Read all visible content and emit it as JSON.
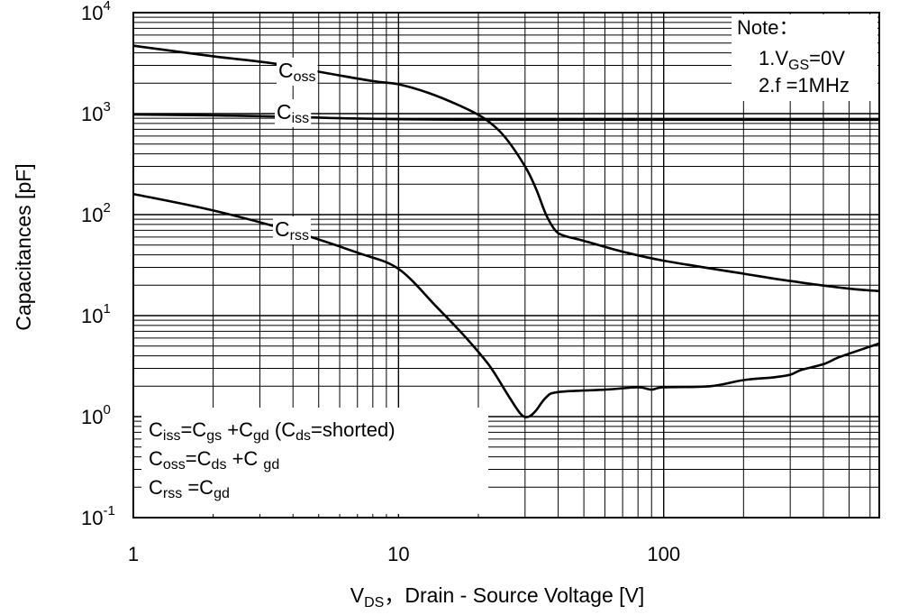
{
  "chart_data": {
    "type": "line",
    "title": "",
    "xlabel": {
      "main": "V",
      "sub": "DS",
      "rest": "，Drain - Source Voltage [V]"
    },
    "ylabel": "Capacitances [pF]",
    "x_scale": "log",
    "y_scale": "log",
    "xlim": [
      1,
      650
    ],
    "ylim": [
      0.1,
      10000
    ],
    "grid": true,
    "x_ticks": [
      {
        "value": 1,
        "label": "1"
      },
      {
        "value": 10,
        "label": "10"
      },
      {
        "value": 100,
        "label": "100"
      }
    ],
    "y_ticks": [
      {
        "value": 10000,
        "base": "10",
        "exp": "4"
      },
      {
        "value": 1000,
        "base": "10",
        "exp": "3"
      },
      {
        "value": 100,
        "base": "10",
        "exp": "2"
      },
      {
        "value": 10,
        "base": "10",
        "exp": "1"
      },
      {
        "value": 1,
        "base": "10",
        "exp": "0"
      },
      {
        "value": 0.1,
        "base": "10",
        "exp": "-1"
      }
    ],
    "series": [
      {
        "name": "Coss",
        "label": {
          "main": "C",
          "sub": "oss"
        },
        "x": [
          1,
          2,
          3.5,
          5,
          8,
          10,
          13,
          17,
          21,
          25,
          30,
          33,
          36,
          39,
          42,
          50,
          70,
          100,
          200,
          300,
          500,
          650
        ],
        "y": [
          4700,
          3700,
          3100,
          2600,
          2100,
          1950,
          1600,
          1200,
          900,
          600,
          300,
          180,
          100,
          70,
          62,
          55,
          43,
          35,
          26,
          22,
          18.5,
          17.5
        ]
      },
      {
        "name": "Ciss",
        "label": {
          "main": "C",
          "sub": "iss"
        },
        "x": [
          1,
          2,
          4,
          6,
          10,
          20,
          30,
          50,
          100,
          300,
          650
        ],
        "y": [
          980,
          960,
          930,
          900,
          880,
          870,
          870,
          870,
          870,
          870,
          870
        ]
      },
      {
        "name": "Crss",
        "label": {
          "main": "C",
          "sub": "rss"
        },
        "x": [
          1,
          2,
          4,
          7,
          10,
          14,
          18,
          22,
          26,
          29,
          31,
          33,
          36,
          40,
          60,
          80,
          90,
          100,
          150,
          200,
          260,
          300,
          330,
          400,
          450,
          500,
          650
        ],
        "y": [
          160,
          110,
          68,
          42,
          29,
          12,
          6,
          3.2,
          1.6,
          1.05,
          1.0,
          1.15,
          1.55,
          1.75,
          1.85,
          1.95,
          1.85,
          1.95,
          2.0,
          2.3,
          2.45,
          2.6,
          2.9,
          3.3,
          3.8,
          4.2,
          5.3
        ]
      }
    ],
    "note": {
      "title": "Note：",
      "lines": [
        {
          "pre": "1.V",
          "sub": "GS",
          "post": "=0V"
        },
        {
          "pre": "2.f =1MHz",
          "sub": "",
          "post": ""
        }
      ]
    },
    "legend_box": {
      "lines": [
        {
          "parts": [
            [
              "C",
              ""
            ],
            [
              "iss",
              "sub"
            ],
            [
              "=C",
              ""
            ],
            [
              "gs",
              "sub"
            ],
            [
              " +C",
              ""
            ],
            [
              "gd",
              "sub"
            ],
            [
              "  (C",
              ""
            ],
            [
              "ds",
              "sub"
            ],
            [
              "=shorted)",
              ""
            ]
          ]
        },
        {
          "parts": [
            [
              "C",
              ""
            ],
            [
              "oss",
              "sub"
            ],
            [
              "=C",
              ""
            ],
            [
              "ds",
              "sub"
            ],
            [
              " +C ",
              ""
            ],
            [
              "gd",
              "sub"
            ]
          ]
        },
        {
          "parts": [
            [
              "C",
              ""
            ],
            [
              "rss",
              "sub"
            ],
            [
              " =C",
              ""
            ],
            [
              "gd",
              "sub"
            ]
          ]
        }
      ]
    }
  }
}
